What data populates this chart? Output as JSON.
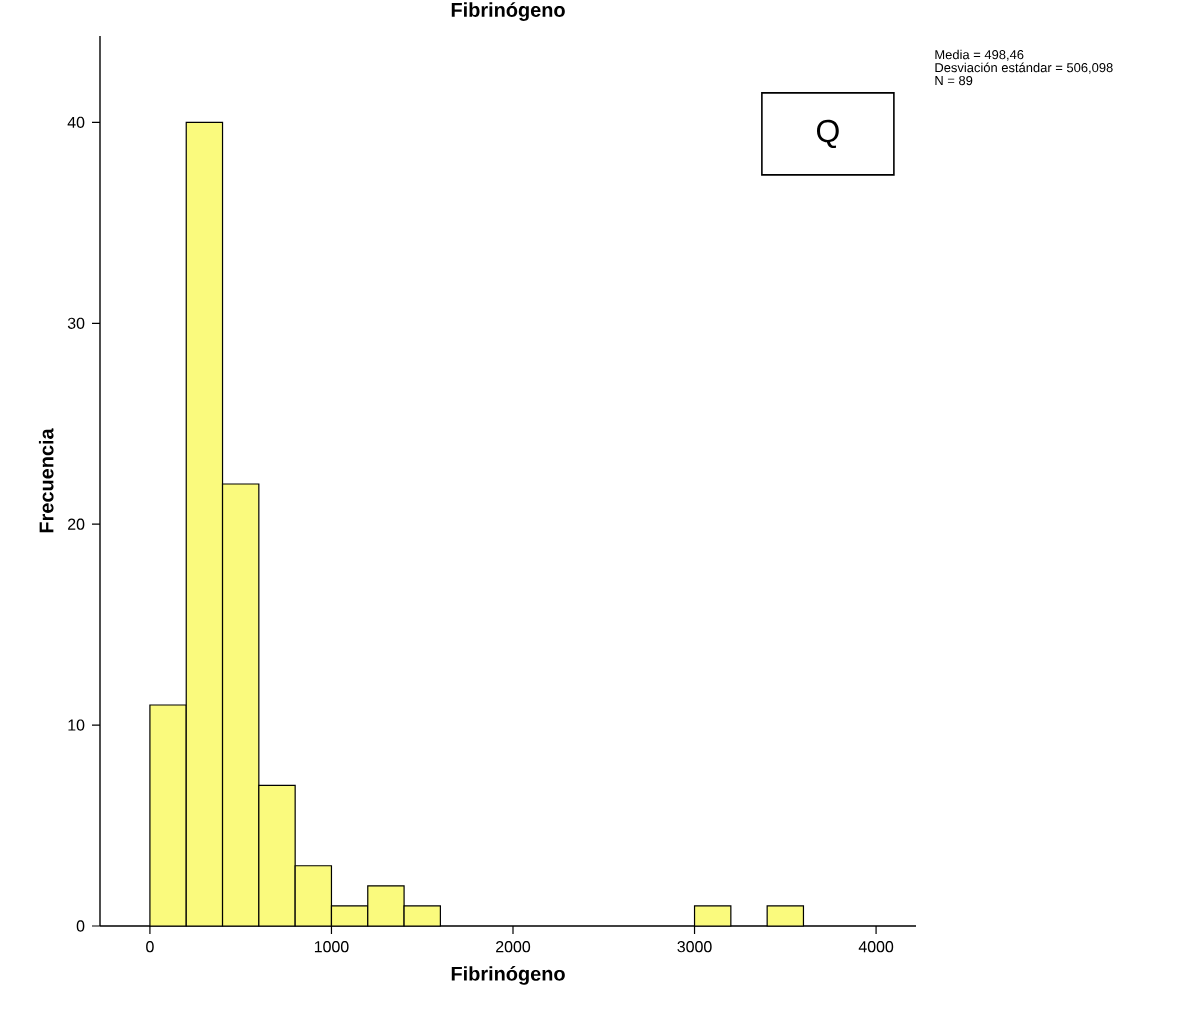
{
  "chart_data": {
    "type": "histogram",
    "title": "Fibrinógeno",
    "xlabel": "Fibrinógeno",
    "ylabel": "Frecuencia",
    "bins": [
      0,
      200,
      400,
      600,
      800,
      1000,
      1200,
      1400,
      1600,
      1800,
      2000,
      2200,
      2400,
      2600,
      2800,
      3000,
      3200,
      3400,
      3600
    ],
    "values": [
      11,
      40,
      22,
      7,
      3,
      1,
      2,
      1,
      0,
      0,
      0,
      0,
      0,
      0,
      0,
      1,
      0,
      1
    ],
    "color": "#fafa7d",
    "xlim": [
      -275,
      4220
    ],
    "ylim": [
      0,
      44.3
    ],
    "xticks": [
      0,
      1000,
      2000,
      3000,
      4000
    ],
    "yticks": [
      0,
      10,
      20,
      30,
      40
    ],
    "grid": false,
    "annotations": [
      "Media = 498,46",
      "Desviación estándar = 506,098",
      "N = 89",
      "Q"
    ]
  }
}
